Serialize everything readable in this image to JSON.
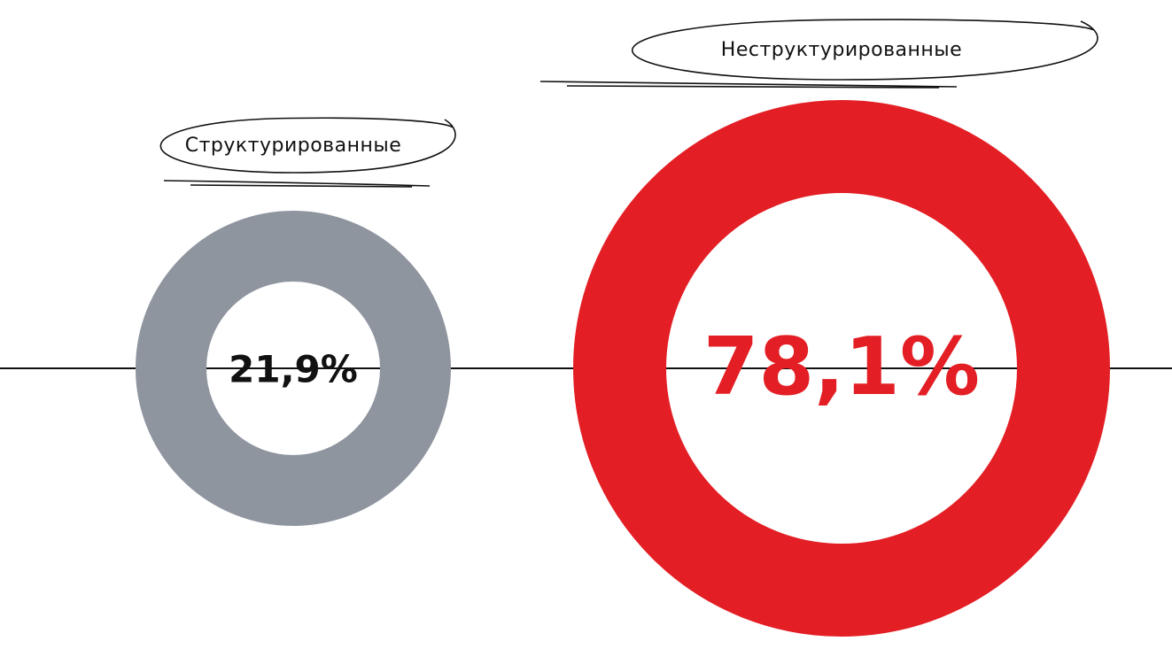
{
  "chart_data": {
    "type": "donut",
    "categories": [
      "Структурированные",
      "Неструктурированные"
    ],
    "values": [
      21.9,
      78.1
    ],
    "value_labels": [
      "21,9%",
      "78,1%"
    ],
    "colors": [
      "#8e959f",
      "#e31e24"
    ],
    "value_label_colors": [
      "#111111",
      "#e31e24"
    ]
  }
}
